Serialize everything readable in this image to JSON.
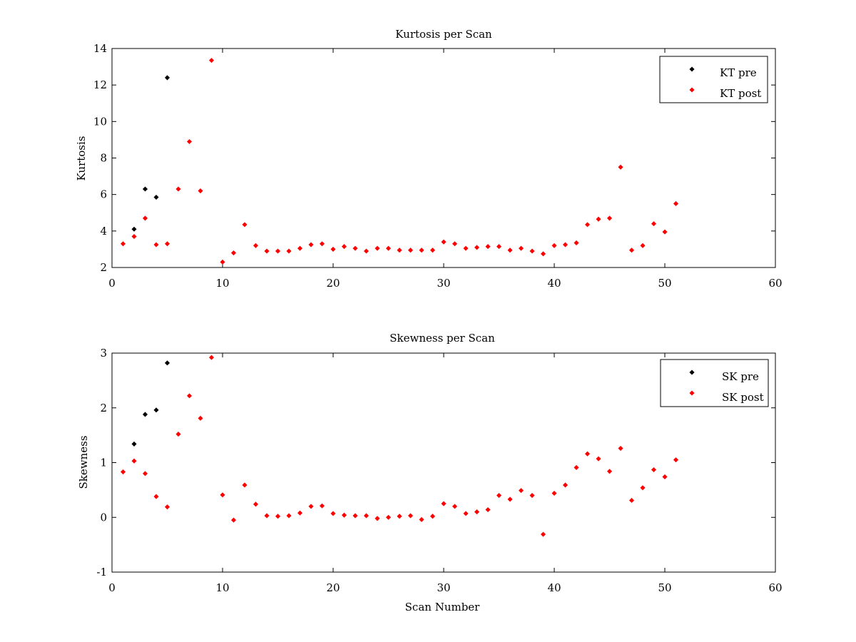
{
  "chart_data": [
    {
      "type": "scatter",
      "title": "Kurtosis per Scan",
      "xlabel": "",
      "ylabel": "Kurtosis",
      "xlim": [
        0,
        60
      ],
      "ylim": [
        2,
        14
      ],
      "xticks": [
        0,
        10,
        20,
        30,
        40,
        50,
        60
      ],
      "yticks": [
        2,
        4,
        6,
        8,
        10,
        12,
        14
      ],
      "grid": false,
      "legend_position": "top-right",
      "series": [
        {
          "name": "KT pre",
          "color": "#000000",
          "points": [
            [
              2,
              4.1
            ],
            [
              3,
              6.3
            ],
            [
              4,
              5.85
            ],
            [
              5,
              12.4
            ]
          ]
        },
        {
          "name": "KT post",
          "color": "#ff0000",
          "points": [
            [
              1,
              3.3
            ],
            [
              2,
              3.7
            ],
            [
              3,
              4.7
            ],
            [
              4,
              3.25
            ],
            [
              5,
              3.3
            ],
            [
              6,
              6.3
            ],
            [
              7,
              8.9
            ],
            [
              8,
              6.2
            ],
            [
              9,
              13.35
            ],
            [
              10,
              2.3
            ],
            [
              11,
              2.8
            ],
            [
              12,
              4.35
            ],
            [
              13,
              3.2
            ],
            [
              14,
              2.9
            ],
            [
              15,
              2.9
            ],
            [
              16,
              2.9
            ],
            [
              17,
              3.05
            ],
            [
              18,
              3.25
            ],
            [
              19,
              3.3
            ],
            [
              20,
              3.0
            ],
            [
              21,
              3.15
            ],
            [
              22,
              3.05
            ],
            [
              23,
              2.9
            ],
            [
              24,
              3.05
            ],
            [
              25,
              3.05
            ],
            [
              26,
              2.95
            ],
            [
              27,
              2.95
            ],
            [
              28,
              2.95
            ],
            [
              29,
              2.95
            ],
            [
              30,
              3.4
            ],
            [
              31,
              3.3
            ],
            [
              32,
              3.05
            ],
            [
              33,
              3.1
            ],
            [
              34,
              3.15
            ],
            [
              35,
              3.15
            ],
            [
              36,
              2.95
            ],
            [
              37,
              3.05
            ],
            [
              38,
              2.9
            ],
            [
              39,
              2.75
            ],
            [
              40,
              3.2
            ],
            [
              41,
              3.25
            ],
            [
              42,
              3.35
            ],
            [
              43,
              4.35
            ],
            [
              44,
              4.65
            ],
            [
              45,
              4.7
            ],
            [
              46,
              7.5
            ],
            [
              47,
              2.95
            ],
            [
              48,
              3.2
            ],
            [
              49,
              4.4
            ],
            [
              50,
              3.95
            ],
            [
              51,
              5.5
            ]
          ]
        }
      ]
    },
    {
      "type": "scatter",
      "title": "Skewness per Scan",
      "xlabel": "Scan Number",
      "ylabel": "Skewness",
      "xlim": [
        0,
        60
      ],
      "ylim": [
        -1,
        3
      ],
      "xticks": [
        0,
        10,
        20,
        30,
        40,
        50,
        60
      ],
      "yticks": [
        -1,
        0,
        1,
        2,
        3
      ],
      "grid": false,
      "legend_position": "top-right",
      "series": [
        {
          "name": "SK pre",
          "color": "#000000",
          "points": [
            [
              2,
              1.34
            ],
            [
              3,
              1.88
            ],
            [
              4,
              1.96
            ],
            [
              5,
              2.82
            ]
          ]
        },
        {
          "name": "SK post",
          "color": "#ff0000",
          "points": [
            [
              1,
              0.83
            ],
            [
              2,
              1.03
            ],
            [
              3,
              0.8
            ],
            [
              4,
              0.38
            ],
            [
              5,
              0.19
            ],
            [
              6,
              1.52
            ],
            [
              7,
              2.22
            ],
            [
              8,
              1.81
            ],
            [
              9,
              2.92
            ],
            [
              10,
              0.41
            ],
            [
              11,
              -0.05
            ],
            [
              12,
              0.59
            ],
            [
              13,
              0.24
            ],
            [
              14,
              0.03
            ],
            [
              15,
              0.02
            ],
            [
              16,
              0.03
            ],
            [
              17,
              0.08
            ],
            [
              18,
              0.2
            ],
            [
              19,
              0.21
            ],
            [
              20,
              0.07
            ],
            [
              21,
              0.04
            ],
            [
              22,
              0.03
            ],
            [
              23,
              0.03
            ],
            [
              24,
              -0.02
            ],
            [
              25,
              0.0
            ],
            [
              26,
              0.02
            ],
            [
              27,
              0.03
            ],
            [
              28,
              -0.04
            ],
            [
              29,
              0.02
            ],
            [
              30,
              0.25
            ],
            [
              31,
              0.2
            ],
            [
              32,
              0.07
            ],
            [
              33,
              0.1
            ],
            [
              34,
              0.14
            ],
            [
              35,
              0.4
            ],
            [
              36,
              0.33
            ],
            [
              37,
              0.49
            ],
            [
              38,
              0.4
            ],
            [
              39,
              -0.31
            ],
            [
              40,
              0.44
            ],
            [
              41,
              0.59
            ],
            [
              42,
              0.91
            ],
            [
              43,
              1.16
            ],
            [
              44,
              1.07
            ],
            [
              45,
              0.84
            ],
            [
              46,
              1.26
            ],
            [
              47,
              0.31
            ],
            [
              48,
              0.54
            ],
            [
              49,
              0.87
            ],
            [
              50,
              0.74
            ],
            [
              51,
              1.05
            ]
          ]
        }
      ]
    }
  ]
}
